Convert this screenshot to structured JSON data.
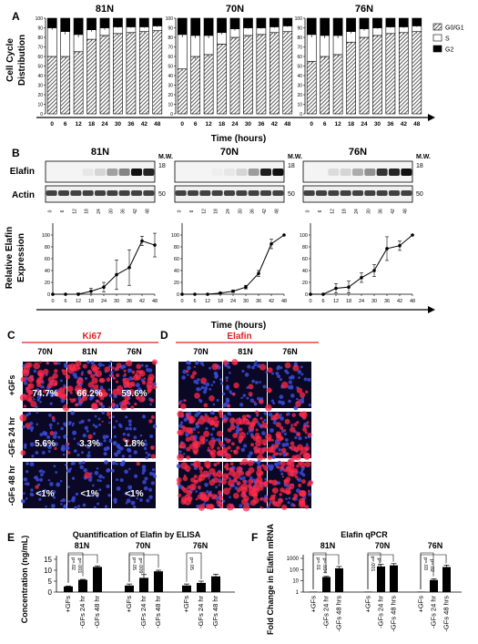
{
  "panel_letters": [
    "A",
    "B",
    "C",
    "D",
    "E",
    "F"
  ],
  "cell_lines": [
    "81N",
    "70N",
    "76N"
  ],
  "cell_lines_C": [
    "70N",
    "81N",
    "76N"
  ],
  "time_points": [
    "0",
    "6",
    "12",
    "18",
    "24",
    "30",
    "36",
    "42",
    "48"
  ],
  "time_axis_label": "Time (hours)",
  "panelA": {
    "ylabel_line1": "Cell Cycle",
    "ylabel_line2": "Distribution",
    "yticks": [
      "0",
      "10",
      "20",
      "30",
      "40",
      "50",
      "60",
      "70",
      "80",
      "90",
      "100"
    ],
    "legend": [
      {
        "label": "G0/G1",
        "style": "hatched"
      },
      {
        "label": "S",
        "style": "white"
      },
      {
        "label": "G2",
        "style": "black"
      }
    ]
  },
  "panelB": {
    "wb_labels": [
      "Elafin",
      "Actin"
    ],
    "mw_label": "M.W.",
    "mw_values": [
      "18",
      "50"
    ],
    "ylabel_line1": "Relative Elafin",
    "ylabel_line2": "Expression",
    "yticks": [
      "0",
      "20",
      "40",
      "60",
      "80",
      "100"
    ]
  },
  "panelC": {
    "title": "Ki67",
    "title_color": "#e02020",
    "rows": [
      "+GFs",
      "-GFs 24 hr",
      "-GFs 48 hr"
    ],
    "percentages": [
      [
        "74.7%",
        "66.2%",
        "59.6%"
      ],
      [
        "5.6%",
        "3.3%",
        "1.8%"
      ],
      [
        "<1%",
        "<1%",
        "<1%"
      ]
    ]
  },
  "panelD": {
    "title": "Elafin",
    "title_color": "#e02020"
  },
  "panelE": {
    "title": "Quantification of Elafin by ELISA",
    "ylabel": "Concentration (ng/mL)",
    "yticks": [
      "0",
      "5",
      "10",
      "15"
    ],
    "conditions": [
      "+GFs",
      "-GFs 24 hr",
      "-GFs 48 hr"
    ],
    "pvalues": [
      [
        "p=.02",
        "p=.001"
      ],
      [
        "p=.05",
        "p=.009"
      ],
      [
        "p=.05"
      ]
    ]
  },
  "panelF": {
    "title": "Elafin qPCR",
    "ylabel": "Fold Change in Elafin mRNA",
    "yticks": [
      "1",
      "10",
      "100",
      "1000"
    ],
    "conditions": [
      "+GFs",
      "-GFs 24 hr",
      "-GFs 48 hrs"
    ],
    "pvalues": [
      [
        "p=.01",
        "p=.004"
      ],
      [
        "p=.001",
        "p=.001"
      ],
      [
        "p=.03",
        "p=.02"
      ]
    ]
  },
  "chart_data": [
    {
      "type": "bar",
      "panel": "A",
      "stacked": true,
      "ylim": [
        0,
        100
      ],
      "facets": [
        {
          "name": "81N",
          "categories": [
            "0",
            "6",
            "12",
            "18",
            "24",
            "30",
            "36",
            "42",
            "48"
          ],
          "series": [
            {
              "name": "G0/G1",
              "values": [
                60,
                60,
                65,
                78,
                82,
                84,
                85,
                86,
                87
              ],
              "err": [
                1,
                2,
                3,
                2,
                2,
                2,
                2,
                2,
                2
              ]
            },
            {
              "name": "S",
              "values": [
                30,
                26,
                18,
                10,
                8,
                7,
                6,
                5,
                5
              ],
              "err": [
                2,
                3,
                3,
                2,
                2,
                1,
                1,
                1,
                1
              ]
            },
            {
              "name": "G2",
              "values": [
                10,
                14,
                17,
                12,
                10,
                9,
                9,
                9,
                8
              ],
              "err": [
                2,
                2,
                3,
                2,
                1,
                1,
                1,
                1,
                1
              ]
            }
          ]
        },
        {
          "name": "70N",
          "categories": [
            "0",
            "6",
            "12",
            "18",
            "24",
            "30",
            "36",
            "42",
            "48"
          ],
          "series": [
            {
              "name": "G0/G1",
              "values": [
                47,
                60,
                62,
                73,
                80,
                82,
                83,
                85,
                86
              ],
              "err": [
                2,
                3,
                3,
                2,
                2,
                2,
                2,
                2,
                2
              ]
            },
            {
              "name": "S",
              "values": [
                36,
                22,
                20,
                12,
                9,
                8,
                7,
                6,
                6
              ],
              "err": [
                3,
                3,
                3,
                2,
                2,
                1,
                1,
                1,
                1
              ]
            },
            {
              "name": "G2",
              "values": [
                17,
                18,
                18,
                15,
                11,
                10,
                10,
                9,
                8
              ],
              "err": [
                2,
                2,
                2,
                2,
                1,
                1,
                1,
                1,
                1
              ]
            }
          ]
        },
        {
          "name": "76N",
          "categories": [
            "0",
            "6",
            "12",
            "18",
            "24",
            "30",
            "36",
            "42",
            "48"
          ],
          "series": [
            {
              "name": "G0/G1",
              "values": [
                55,
                60,
                62,
                75,
                80,
                82,
                84,
                85,
                86
              ],
              "err": [
                2,
                3,
                3,
                2,
                2,
                2,
                2,
                2,
                2
              ]
            },
            {
              "name": "S",
              "values": [
                28,
                22,
                20,
                11,
                9,
                8,
                7,
                6,
                6
              ],
              "err": [
                3,
                3,
                3,
                2,
                2,
                1,
                1,
                1,
                1
              ]
            },
            {
              "name": "G2",
              "values": [
                17,
                18,
                18,
                14,
                11,
                10,
                9,
                9,
                8
              ],
              "err": [
                2,
                2,
                2,
                2,
                1,
                1,
                1,
                1,
                1
              ]
            }
          ]
        }
      ]
    },
    {
      "type": "line",
      "panel": "B",
      "ylim": [
        0,
        120
      ],
      "x": [
        0,
        6,
        12,
        18,
        24,
        30,
        36,
        42,
        48
      ],
      "facets": [
        {
          "name": "81N",
          "values": [
            0,
            0,
            0,
            5,
            12,
            33,
            45,
            90,
            83
          ],
          "err": [
            0,
            0,
            2,
            5,
            8,
            25,
            30,
            8,
            20
          ]
        },
        {
          "name": "70N",
          "values": [
            0,
            0,
            0,
            2,
            5,
            12,
            35,
            85,
            100
          ],
          "err": [
            0,
            0,
            0,
            1,
            2,
            3,
            5,
            8,
            0
          ]
        },
        {
          "name": "76N",
          "values": [
            0,
            0,
            10,
            12,
            28,
            40,
            77,
            82,
            100
          ],
          "err": [
            0,
            0,
            8,
            10,
            8,
            10,
            20,
            8,
            0
          ]
        }
      ]
    },
    {
      "type": "bar",
      "panel": "E",
      "ylabel": "Concentration (ng/mL)",
      "ylim": [
        0,
        15
      ],
      "facets": [
        {
          "name": "81N",
          "categories": [
            "+GFs",
            "-GFs 24 hr",
            "-GFs 48 hr"
          ],
          "values": [
            2.6,
            5.6,
            11.5
          ],
          "err": [
            0.2,
            0.2,
            0.5
          ]
        },
        {
          "name": "70N",
          "categories": [
            "+GFs",
            "-GFs 24 hr",
            "-GFs 48 hr"
          ],
          "values": [
            3.0,
            6.5,
            9.5
          ],
          "err": [
            0.7,
            1.5,
            0.5
          ]
        },
        {
          "name": "76N",
          "categories": [
            "+GFs",
            "-GFs 24 hr",
            "-GFs 48 hr"
          ],
          "values": [
            3.0,
            4.2,
            7.2
          ],
          "err": [
            0.7,
            0.8,
            1.0
          ]
        }
      ]
    },
    {
      "type": "bar",
      "panel": "F",
      "ylabel": "Fold Change in Elafin mRNA",
      "yscale": "log",
      "ylim": [
        1,
        1000
      ],
      "facets": [
        {
          "name": "81N",
          "categories": [
            "+GFs",
            "-GFs 24 hr",
            "-GFs 48 hrs"
          ],
          "values": [
            1,
            22,
            130
          ],
          "err": [
            0,
            3,
            60
          ]
        },
        {
          "name": "70N",
          "categories": [
            "+GFs",
            "-GFs 24 hr",
            "-GFs 48 hrs"
          ],
          "values": [
            1,
            190,
            240
          ],
          "err": [
            0,
            100,
            100
          ]
        },
        {
          "name": "76N",
          "categories": [
            "+GFs",
            "-GFs 24 hr",
            "-GFs 48 hrs"
          ],
          "values": [
            1,
            12,
            170
          ],
          "err": [
            0,
            3,
            80
          ]
        }
      ]
    }
  ]
}
